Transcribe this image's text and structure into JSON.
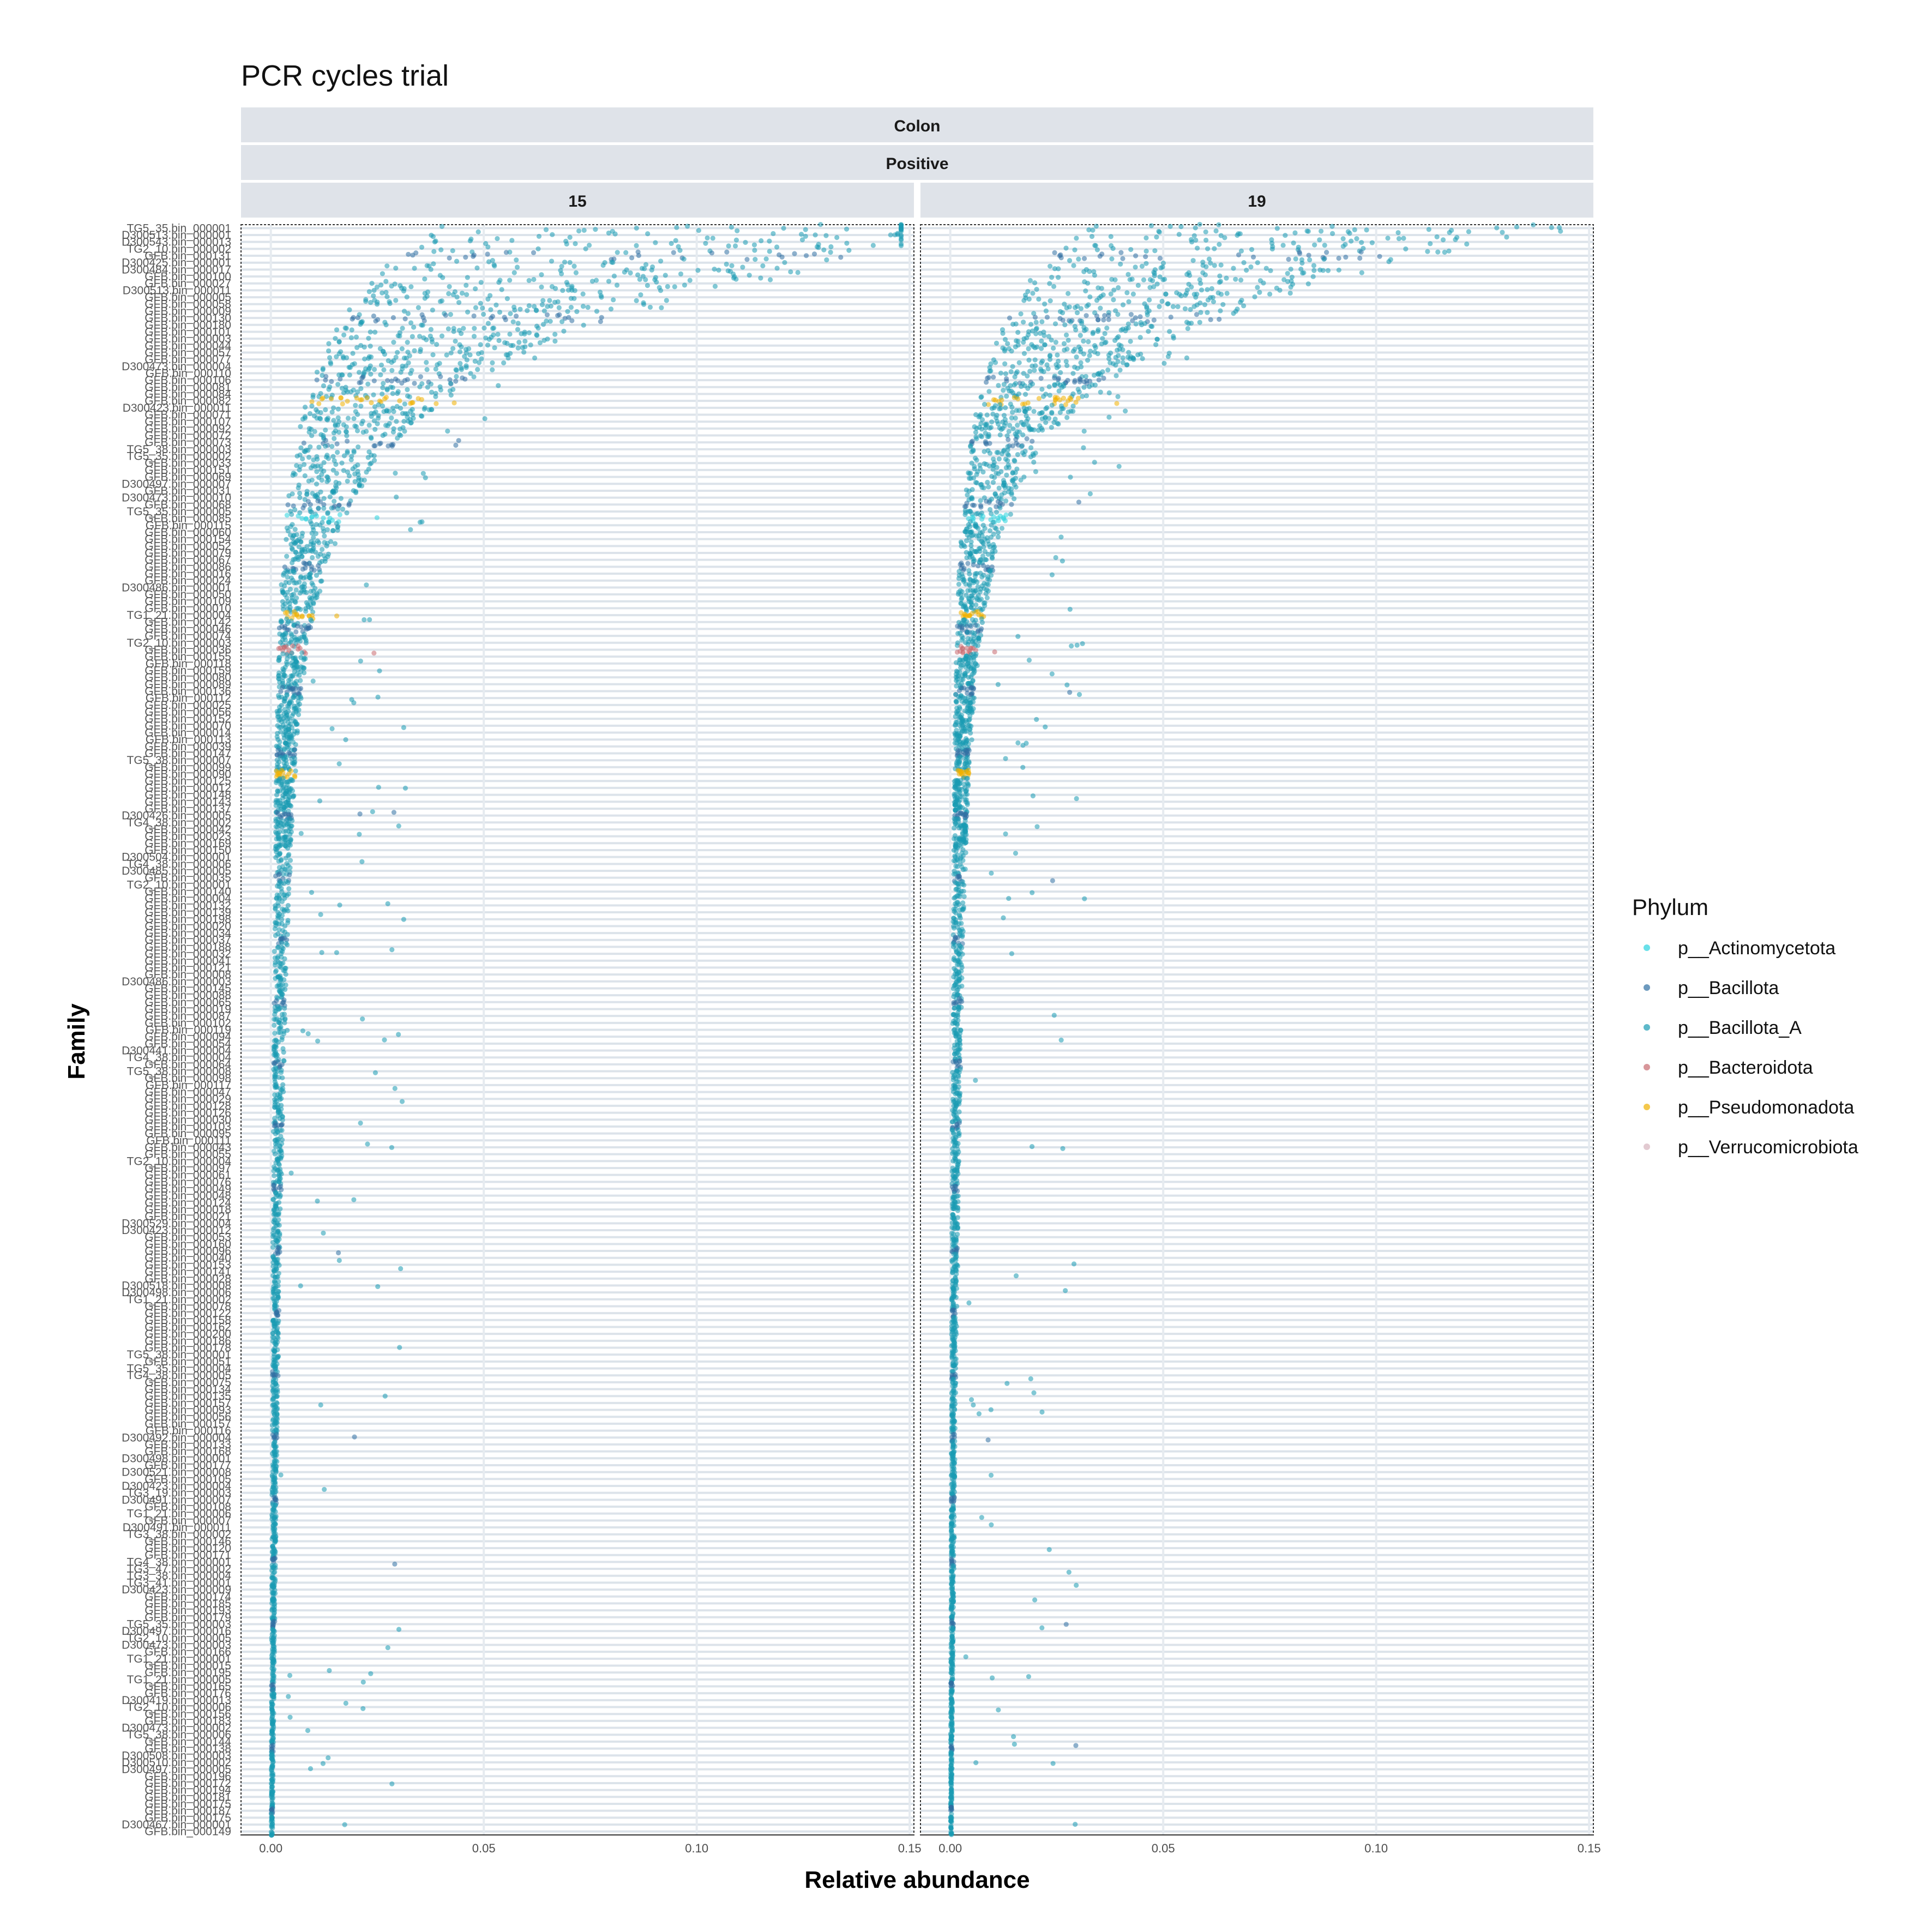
{
  "chart_data": {
    "type": "scatter",
    "title": "PCR cycles trial",
    "xlabel": "Relative abundance",
    "ylabel": "Family",
    "facet_strips": [
      "Colon",
      "Positive"
    ],
    "panels": [
      {
        "label": "15"
      },
      {
        "label": "19"
      }
    ],
    "xlim": [
      -0.007,
      0.151
    ],
    "x_ticks": [
      0.0,
      0.05,
      0.1,
      0.15
    ],
    "x_tick_labels": [
      "0.00",
      "0.05",
      "0.10",
      "0.15"
    ],
    "grid": true,
    "legend": {
      "title": "Phylum",
      "position": "right",
      "entries": [
        {
          "name": "p__Actinomycetota",
          "color": "#2ad3df"
        },
        {
          "name": "p__Bacillota",
          "color": "#2f6fa3"
        },
        {
          "name": "p__Bacillota_A",
          "color": "#1a9bb3"
        },
        {
          "name": "p__Bacteroidota",
          "color": "#c8696f"
        },
        {
          "name": "p__Pseudomonadota",
          "color": "#f0b000"
        },
        {
          "name": "p__Verrucomicrobiota",
          "color": "#d6b3bd"
        }
      ]
    },
    "y_categories": [
      "TG5_35.bin_000001",
      "D300513.bin_000001",
      "D300543.bin_000013",
      "TG2_10.bin_000002",
      "GFB.bin_000131",
      "D300425.bin_000001",
      "D300484.bin_000017",
      "GFB.bin_000100",
      "GFB.bin_000027",
      "D300513.bin_000011",
      "GFB.bin_000005",
      "GFB.bin_000058",
      "GFB.bin_000009",
      "GFB.bin_000130",
      "GFB.bin_000180",
      "GFB.bin_000101",
      "GFB.bin_000003",
      "GFB.bin_000044",
      "GFB.bin_000057",
      "GFB.bin_000077",
      "D300473.bin_000004",
      "GFB.bin_000110",
      "GFB.bin_000106",
      "GFB.bin_000081",
      "GFB.bin_000084",
      "GFB.bin_000082",
      "D300423.bin_000011",
      "GFB.bin_000071",
      "GFB.bin_000107",
      "GFB.bin_000092",
      "GFB.bin_000072",
      "GFB.bin_000073",
      "TG5_38.bin_000003",
      "TG5_35.bin_000002",
      "GFB.bin_000033",
      "GFB.bin_000151",
      "GFB.bin_000069",
      "D300497.bin_000007",
      "GFB.bin_000031",
      "D300473.bin_000010",
      "GFB.bin_000068",
      "TG5_35.bin_000005",
      "GFB.bin_000085",
      "GFB.bin_000115",
      "GFB.bin_000060",
      "GFB.bin_000154",
      "GFB.bin_000052",
      "GFB.bin_000079",
      "GFB.bin_000067",
      "GFB.bin_000086",
      "GFB.bin_000016",
      "GFB.bin_000024",
      "D300486.bin_000001",
      "GFB.bin_000050",
      "GFB.bin_000109",
      "GFB.bin_000010",
      "TG1_21.bin_000004",
      "GFB.bin_000142",
      "GFB.bin_000046",
      "GFB.bin_000074",
      "TG2_10.bin_000003",
      "GFB.bin_000036",
      "GFB.bin_000155",
      "GFB.bin_000118",
      "GFB.bin_000159",
      "GFB.bin_000080",
      "GFB.bin_000089",
      "GFB.bin_000136",
      "GFB.bin_000112",
      "GFB.bin_000025",
      "GFB.bin_000056",
      "GFB.bin_000152",
      "GFB.bin_000070",
      "GFB.bin_000014",
      "GFB.bin_000113",
      "GFB.bin_000039",
      "GFB.bin_000147",
      "TG5_38.bin_000007",
      "GFB.bin_000099",
      "GFB.bin_000090",
      "GFB.bin_000125",
      "GFB.bin_000012",
      "GFB.bin_000148",
      "GFB.bin_000143",
      "GFB.bin_000137",
      "D300426.bin_000005",
      "TG4_38.bin_000002",
      "GFB.bin_000042",
      "GFB.bin_000023",
      "GFB.bin_000169",
      "GFB.bin_000150",
      "D300504.bin_000001",
      "TG4_38.bin_000006",
      "D300485.bin_000005",
      "GFB.bin_000035",
      "TG2_10.bin_000001",
      "GFB.bin_000140",
      "GFB.bin_000004",
      "GFB.bin_000132",
      "GFB.bin_000139",
      "GFB.bin_000198",
      "GFB.bin_000020",
      "GFB.bin_000034",
      "GFB.bin_000037",
      "GFB.bin_000188",
      "GFB.bin_000032",
      "GFB.bin_000041",
      "GFB.bin_000121",
      "GFB.bin_000008",
      "D300486.bin_000003",
      "GFB.bin_000145",
      "GFB.bin_000088",
      "GFB.bin_000065",
      "GFB.bin_000019",
      "GFB.bin_000087",
      "GFB.bin_000102",
      "GFB.bin_000119",
      "GFB.bin_000094",
      "GFB.bin_000054",
      "D300441.bin_000004",
      "TG4_38.bin_000004",
      "GFB.bin_000064",
      "TG5_38.bin_000008",
      "GFB.bin_000098",
      "GFB.bin_000117",
      "GFB.bin_000047",
      "GFB.bin_000029",
      "GFB.bin_000128",
      "GFB.bin_000126",
      "GFB.bin_000030",
      "GFB.bin_000103",
      "GFB.bin_000095",
      "GFB.bin_000111",
      "GFB.bin_000043",
      "GFB.bin_000055",
      "TG2_10.bin_000004",
      "GFB.bin_000097",
      "GFB.bin_000061",
      "GFB.bin_000076",
      "GFB.bin_000049",
      "GFB.bin_000048",
      "GFB.bin_000124",
      "GFB.bin_000018",
      "GFB.bin_000021",
      "D300529.bin_000004",
      "D300423.bin_000012",
      "GFB.bin_000053",
      "GFB.bin_000160",
      "GFB.bin_000096",
      "GFB.bin_000040",
      "GFB.bin_000153",
      "GFB.bin_000141",
      "GFB.bin_000028",
      "D300518.bin_000008",
      "D300498.bin_000006",
      "TG1_21.bin_000002",
      "GFB.bin_000078",
      "GFB.bin_000122",
      "GFB.bin_000158",
      "GFB.bin_000162",
      "GFB.bin_000200",
      "GFB.bin_000186",
      "GFB.bin_000178",
      "TG5_38.bin_000001",
      "GFB.bin_000051",
      "TG5_35.bin_000004",
      "TG4_38.bin_000005",
      "GFB.bin_000075",
      "GFB.bin_000134",
      "GFB.bin_000135",
      "GFB.bin_000157",
      "GFB.bin_000093",
      "GFB.bin_000056",
      "GFB.bin_000157",
      "GFB.bin_000116",
      "D300492.bin_000004",
      "GFB.bin_000133",
      "GFB.bin_000168",
      "D300498.bin_000001",
      "GFB.bin_000177",
      "D300521.bin_000008",
      "GFB.bin_000105",
      "D300423.bin_000004",
      "TG3_19.bin_000003",
      "D300491.bin_000007",
      "GFB.bin_000108",
      "TG1_21.bin_000006",
      "GFB.bin_000007",
      "D300491.bin_000011",
      "TG3_38.bin_000002",
      "GFB.bin_000146",
      "GFB.bin_000120",
      "GFB.bin_000171",
      "TG4_38.bin_000001",
      "TG3_47.bin_000002",
      "TG3_38.bin_000004",
      "TG3_41.bin_000001",
      "D300423.bin_000009",
      "GFB.bin_000174",
      "GFB.bin_000185",
      "GFB.bin_000193",
      "GFB.bin_000179",
      "TG5_35.bin_000003",
      "D300497.bin_000016",
      "TG2_10.bin_000005",
      "D300473.bin_000003",
      "GFB.bin_000166",
      "TG1_21.bin_000001",
      "GFB.bin_000015",
      "GFB.bin_000195",
      "TG1_21.bin_000005",
      "GFB.bin_000165",
      "GFB.bin_000176",
      "D300419.bin_000013",
      "TG2_10.bin_000006",
      "GFB.bin_000156",
      "GFB.bin_000183",
      "D300473.bin_000002",
      "TG5_38.bin_000006",
      "GFB.bin_000144",
      "GFB.bin_000138",
      "D300508.bin_000003",
      "D300510.bin_000002",
      "D300497.bin_000005",
      "GFB.bin_000196",
      "GFB.bin_000172",
      "GFB.bin_000194",
      "GFB.bin_000181",
      "GFB.bin_000175",
      "GFB.bin_000187",
      "GFB.bin_000175",
      "D300467.bin_000001",
      "GFB.bin_000149"
    ],
    "series": [
      {
        "name": "p__Bacillota_A",
        "type": "scatter",
        "x_per_panel": "see categories; per-category median values decay roughly from 0.13 at TG5_35.bin_000001 to 0.0 at GFB.bin_000149",
        "values": [
          [
            0.0,
            0.11,
            0.06,
            0.048,
            0.045,
            0.04,
            0.036,
            0.034,
            0.032,
            0.03,
            0.028,
            0.026,
            0.024,
            0.021,
            0.018,
            0.016,
            0.015,
            0.014,
            0.013,
            0.012,
            0.011,
            0.011,
            0.01,
            0.01,
            0.009,
            0.009,
            0.008,
            0.008,
            0.008,
            0.007,
            0.007,
            0.007,
            0.006,
            0.006,
            0.006,
            0.006,
            0.005,
            0.005,
            0.005,
            0.005
          ],
          [
            0.0,
            0.09,
            0.06,
            0.05,
            0.045,
            0.04,
            0.036,
            0.032,
            0.03,
            0.028,
            0.025,
            0.022,
            0.019,
            0.016,
            0.014,
            0.012,
            0.011,
            0.01,
            0.009,
            0.009,
            0.008,
            0.008,
            0.007,
            0.007,
            0.007,
            0.006,
            0.006,
            0.006,
            0.005,
            0.005,
            0.005,
            0.005,
            0.004,
            0.004,
            0.004,
            0.004,
            0.004,
            0.004,
            0.003,
            0.003
          ]
        ]
      },
      {
        "name": "p__Pseudomonadota",
        "highlighted_categories": [
          "TG1_21.bin_000004",
          "GFB.bin_000082",
          "GFB.bin_000090"
        ]
      },
      {
        "name": "p__Bacteroidota",
        "highlighted_categories": [
          "GFB.bin_000036"
        ]
      },
      {
        "name": "p__Actinomycetota",
        "highlighted_categories": [
          "GFB.bin_000085"
        ]
      }
    ]
  }
}
